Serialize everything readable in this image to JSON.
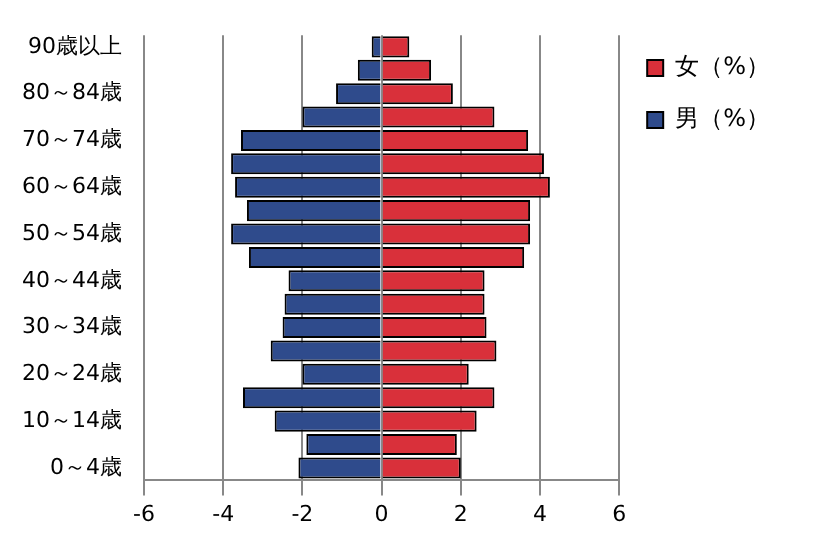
{
  "chart_data": {
    "type": "bar",
    "orientation": "horizontal",
    "stacked": true,
    "categories": [
      "90歳以上",
      null,
      "80～84歳",
      null,
      "70～74歳",
      null,
      "60～64歳",
      null,
      "50～54歳",
      null,
      "40～44歳",
      null,
      "30～34歳",
      null,
      "20～24歳",
      null,
      "10～14歳",
      null,
      "0～4歳"
    ],
    "series": [
      {
        "name": "女（%）",
        "color": "#d9303a",
        "values": [
          0.7,
          1.25,
          1.8,
          2.85,
          3.7,
          4.1,
          4.25,
          3.75,
          3.75,
          3.6,
          2.6,
          2.6,
          2.65,
          2.9,
          2.2,
          2.85,
          2.4,
          1.9,
          2.0
        ]
      },
      {
        "name": "男（%）",
        "color": "#2f4b8c",
        "values": [
          -0.25,
          -0.6,
          -1.15,
          -2.0,
          -3.55,
          -3.8,
          -3.7,
          -3.4,
          -3.8,
          -3.35,
          -2.35,
          -2.45,
          -2.5,
          -2.8,
          -2.0,
          -3.5,
          -2.7,
          -1.9,
          -2.1
        ]
      }
    ],
    "xlim": [
      -6,
      6
    ],
    "xticks": [
      -6,
      -4,
      -2,
      0,
      2,
      4,
      6
    ],
    "grid": "x",
    "legend": "right"
  }
}
